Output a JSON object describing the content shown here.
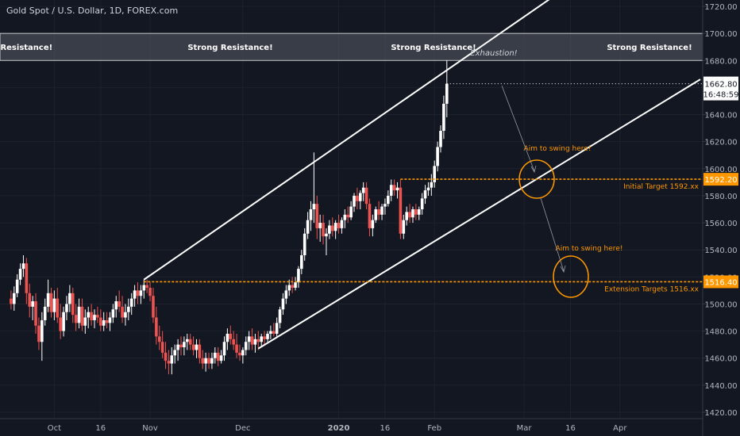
{
  "colors": {
    "background": "#131722",
    "grid": "#1e222d",
    "up": "#ffffff",
    "down": "#ef5350",
    "channel": "#ffffff",
    "target": "#ff9800",
    "resistance_fill": "#5a5d66",
    "axis_text": "#b2b5be",
    "current_price_bg": "#ffffff",
    "current_price_text": "#131722"
  },
  "chart_data": {
    "type": "candlestick",
    "title": "Gold Spot / U.S. Dollar, 1D, FOREX.com",
    "ylim": [
      1420,
      1720
    ],
    "x_range_days": [
      -14,
      210
    ],
    "y_ticks": [
      {
        "value": 1420,
        "label": "1420.00"
      },
      {
        "value": 1440,
        "label": "1440.00"
      },
      {
        "value": 1460,
        "label": "1460.00"
      },
      {
        "value": 1480,
        "label": "1480.00"
      },
      {
        "value": 1500,
        "label": "1500.00"
      },
      {
        "value": 1520,
        "label": "1520.00"
      },
      {
        "value": 1540,
        "label": "1540.00"
      },
      {
        "value": 1560,
        "label": "1560.00"
      },
      {
        "value": 1580,
        "label": "1580.00"
      },
      {
        "value": 1600,
        "label": "1600.00"
      },
      {
        "value": 1620,
        "label": "1620.00"
      },
      {
        "value": 1640,
        "label": "1640.00"
      },
      {
        "value": 1660,
        "label": "1660.00"
      },
      {
        "value": 1680,
        "label": "1680.00"
      },
      {
        "value": 1700,
        "label": "1700.00"
      },
      {
        "value": 1720,
        "label": "1720.00"
      }
    ],
    "x_ticks": [
      {
        "day": 1,
        "label": "Oct",
        "bold": false
      },
      {
        "day": 16,
        "label": "16",
        "bold": false
      },
      {
        "day": 32,
        "label": "Nov",
        "bold": false
      },
      {
        "day": 62,
        "label": "Dec",
        "bold": false
      },
      {
        "day": 93,
        "label": "2020",
        "bold": true
      },
      {
        "day": 108,
        "label": "16",
        "bold": false
      },
      {
        "day": 124,
        "label": "Feb",
        "bold": false
      },
      {
        "day": 153,
        "label": "Mar",
        "bold": false
      },
      {
        "day": 168,
        "label": "16",
        "bold": false
      },
      {
        "day": 184,
        "label": "Apr",
        "bold": false
      }
    ],
    "candles": [
      {
        "d": -13,
        "o": 1504,
        "h": 1510,
        "l": 1496,
        "c": 1500
      },
      {
        "d": -12,
        "o": 1500,
        "h": 1513,
        "l": 1495,
        "c": 1508
      },
      {
        "d": -11,
        "o": 1508,
        "h": 1522,
        "l": 1505,
        "c": 1518
      },
      {
        "d": -10,
        "o": 1518,
        "h": 1530,
        "l": 1514,
        "c": 1526
      },
      {
        "d": -9,
        "o": 1526,
        "h": 1536,
        "l": 1520,
        "c": 1530
      },
      {
        "d": -8,
        "o": 1530,
        "h": 1534,
        "l": 1500,
        "c": 1508
      },
      {
        "d": -7,
        "o": 1508,
        "h": 1515,
        "l": 1490,
        "c": 1498
      },
      {
        "d": -6,
        "o": 1498,
        "h": 1506,
        "l": 1488,
        "c": 1502
      },
      {
        "d": -5,
        "o": 1502,
        "h": 1508,
        "l": 1478,
        "c": 1484
      },
      {
        "d": -4,
        "o": 1484,
        "h": 1490,
        "l": 1466,
        "c": 1472
      },
      {
        "d": -3,
        "o": 1472,
        "h": 1494,
        "l": 1458,
        "c": 1488
      },
      {
        "d": -2,
        "o": 1488,
        "h": 1504,
        "l": 1484,
        "c": 1498
      },
      {
        "d": -1,
        "o": 1498,
        "h": 1518,
        "l": 1494,
        "c": 1508
      },
      {
        "d": 0,
        "o": 1508,
        "h": 1512,
        "l": 1490,
        "c": 1494
      },
      {
        "d": 1,
        "o": 1494,
        "h": 1510,
        "l": 1488,
        "c": 1504
      },
      {
        "d": 2,
        "o": 1504,
        "h": 1512,
        "l": 1486,
        "c": 1490
      },
      {
        "d": 3,
        "o": 1490,
        "h": 1500,
        "l": 1474,
        "c": 1480
      },
      {
        "d": 4,
        "o": 1480,
        "h": 1498,
        "l": 1476,
        "c": 1494
      },
      {
        "d": 5,
        "o": 1494,
        "h": 1506,
        "l": 1488,
        "c": 1500
      },
      {
        "d": 6,
        "o": 1500,
        "h": 1514,
        "l": 1494,
        "c": 1508
      },
      {
        "d": 7,
        "o": 1508,
        "h": 1512,
        "l": 1486,
        "c": 1492
      },
      {
        "d": 8,
        "o": 1492,
        "h": 1500,
        "l": 1480,
        "c": 1486
      },
      {
        "d": 9,
        "o": 1486,
        "h": 1504,
        "l": 1482,
        "c": 1498
      },
      {
        "d": 10,
        "o": 1498,
        "h": 1504,
        "l": 1480,
        "c": 1484
      },
      {
        "d": 11,
        "o": 1484,
        "h": 1496,
        "l": 1478,
        "c": 1490
      },
      {
        "d": 12,
        "o": 1490,
        "h": 1498,
        "l": 1482,
        "c": 1494
      },
      {
        "d": 13,
        "o": 1494,
        "h": 1500,
        "l": 1484,
        "c": 1488
      },
      {
        "d": 14,
        "o": 1488,
        "h": 1496,
        "l": 1482,
        "c": 1492
      },
      {
        "d": 15,
        "o": 1492,
        "h": 1498,
        "l": 1486,
        "c": 1490
      },
      {
        "d": 16,
        "o": 1490,
        "h": 1496,
        "l": 1480,
        "c": 1484
      },
      {
        "d": 17,
        "o": 1484,
        "h": 1494,
        "l": 1480,
        "c": 1488
      },
      {
        "d": 18,
        "o": 1488,
        "h": 1494,
        "l": 1482,
        "c": 1486
      },
      {
        "d": 19,
        "o": 1486,
        "h": 1494,
        "l": 1480,
        "c": 1490
      },
      {
        "d": 20,
        "o": 1490,
        "h": 1500,
        "l": 1486,
        "c": 1496
      },
      {
        "d": 21,
        "o": 1496,
        "h": 1506,
        "l": 1490,
        "c": 1502
      },
      {
        "d": 22,
        "o": 1502,
        "h": 1510,
        "l": 1494,
        "c": 1498
      },
      {
        "d": 23,
        "o": 1498,
        "h": 1506,
        "l": 1486,
        "c": 1490
      },
      {
        "d": 24,
        "o": 1490,
        "h": 1500,
        "l": 1484,
        "c": 1494
      },
      {
        "d": 25,
        "o": 1494,
        "h": 1504,
        "l": 1488,
        "c": 1498
      },
      {
        "d": 26,
        "o": 1498,
        "h": 1508,
        "l": 1492,
        "c": 1504
      },
      {
        "d": 27,
        "o": 1504,
        "h": 1514,
        "l": 1498,
        "c": 1510
      },
      {
        "d": 28,
        "o": 1510,
        "h": 1516,
        "l": 1500,
        "c": 1506
      },
      {
        "d": 29,
        "o": 1506,
        "h": 1514,
        "l": 1500,
        "c": 1510
      },
      {
        "d": 30,
        "o": 1510,
        "h": 1518,
        "l": 1504,
        "c": 1514
      },
      {
        "d": 31,
        "o": 1514,
        "h": 1518,
        "l": 1508,
        "c": 1512
      },
      {
        "d": 32,
        "o": 1512,
        "h": 1516,
        "l": 1502,
        "c": 1506
      },
      {
        "d": 33,
        "o": 1506,
        "h": 1512,
        "l": 1486,
        "c": 1490
      },
      {
        "d": 34,
        "o": 1490,
        "h": 1498,
        "l": 1470,
        "c": 1476
      },
      {
        "d": 35,
        "o": 1476,
        "h": 1484,
        "l": 1466,
        "c": 1472
      },
      {
        "d": 36,
        "o": 1472,
        "h": 1480,
        "l": 1460,
        "c": 1464
      },
      {
        "d": 37,
        "o": 1464,
        "h": 1472,
        "l": 1452,
        "c": 1458
      },
      {
        "d": 38,
        "o": 1458,
        "h": 1466,
        "l": 1448,
        "c": 1456
      },
      {
        "d": 39,
        "o": 1456,
        "h": 1468,
        "l": 1448,
        "c": 1462
      },
      {
        "d": 40,
        "o": 1462,
        "h": 1470,
        "l": 1456,
        "c": 1466
      },
      {
        "d": 41,
        "o": 1466,
        "h": 1474,
        "l": 1458,
        "c": 1470
      },
      {
        "d": 42,
        "o": 1470,
        "h": 1476,
        "l": 1462,
        "c": 1468
      },
      {
        "d": 43,
        "o": 1468,
        "h": 1476,
        "l": 1462,
        "c": 1472
      },
      {
        "d": 44,
        "o": 1472,
        "h": 1478,
        "l": 1466,
        "c": 1474
      },
      {
        "d": 45,
        "o": 1474,
        "h": 1478,
        "l": 1466,
        "c": 1470
      },
      {
        "d": 46,
        "o": 1470,
        "h": 1476,
        "l": 1462,
        "c": 1466
      },
      {
        "d": 47,
        "o": 1466,
        "h": 1474,
        "l": 1460,
        "c": 1470
      },
      {
        "d": 48,
        "o": 1470,
        "h": 1474,
        "l": 1456,
        "c": 1460
      },
      {
        "d": 49,
        "o": 1460,
        "h": 1466,
        "l": 1452,
        "c": 1456
      },
      {
        "d": 50,
        "o": 1456,
        "h": 1464,
        "l": 1450,
        "c": 1460
      },
      {
        "d": 51,
        "o": 1460,
        "h": 1464,
        "l": 1452,
        "c": 1456
      },
      {
        "d": 52,
        "o": 1456,
        "h": 1464,
        "l": 1452,
        "c": 1460
      },
      {
        "d": 53,
        "o": 1460,
        "h": 1468,
        "l": 1456,
        "c": 1464
      },
      {
        "d": 54,
        "o": 1464,
        "h": 1468,
        "l": 1454,
        "c": 1458
      },
      {
        "d": 55,
        "o": 1458,
        "h": 1466,
        "l": 1456,
        "c": 1462
      },
      {
        "d": 56,
        "o": 1462,
        "h": 1476,
        "l": 1458,
        "c": 1472
      },
      {
        "d": 57,
        "o": 1472,
        "h": 1482,
        "l": 1466,
        "c": 1478
      },
      {
        "d": 58,
        "o": 1478,
        "h": 1484,
        "l": 1470,
        "c": 1474
      },
      {
        "d": 59,
        "o": 1474,
        "h": 1480,
        "l": 1466,
        "c": 1470
      },
      {
        "d": 60,
        "o": 1470,
        "h": 1478,
        "l": 1460,
        "c": 1464
      },
      {
        "d": 61,
        "o": 1464,
        "h": 1470,
        "l": 1458,
        "c": 1462
      },
      {
        "d": 62,
        "o": 1462,
        "h": 1468,
        "l": 1456,
        "c": 1466
      },
      {
        "d": 63,
        "o": 1466,
        "h": 1476,
        "l": 1462,
        "c": 1472
      },
      {
        "d": 64,
        "o": 1472,
        "h": 1480,
        "l": 1466,
        "c": 1476
      },
      {
        "d": 65,
        "o": 1476,
        "h": 1482,
        "l": 1466,
        "c": 1470
      },
      {
        "d": 66,
        "o": 1470,
        "h": 1478,
        "l": 1464,
        "c": 1474
      },
      {
        "d": 67,
        "o": 1474,
        "h": 1480,
        "l": 1466,
        "c": 1472
      },
      {
        "d": 68,
        "o": 1472,
        "h": 1478,
        "l": 1468,
        "c": 1476
      },
      {
        "d": 69,
        "o": 1476,
        "h": 1480,
        "l": 1470,
        "c": 1474
      },
      {
        "d": 70,
        "o": 1474,
        "h": 1480,
        "l": 1472,
        "c": 1478
      },
      {
        "d": 71,
        "o": 1478,
        "h": 1484,
        "l": 1474,
        "c": 1480
      },
      {
        "d": 72,
        "o": 1480,
        "h": 1486,
        "l": 1476,
        "c": 1478
      },
      {
        "d": 73,
        "o": 1478,
        "h": 1490,
        "l": 1476,
        "c": 1486
      },
      {
        "d": 74,
        "o": 1486,
        "h": 1498,
        "l": 1482,
        "c": 1496
      },
      {
        "d": 75,
        "o": 1496,
        "h": 1508,
        "l": 1492,
        "c": 1504
      },
      {
        "d": 76,
        "o": 1504,
        "h": 1514,
        "l": 1500,
        "c": 1510
      },
      {
        "d": 77,
        "o": 1510,
        "h": 1518,
        "l": 1506,
        "c": 1514
      },
      {
        "d": 78,
        "o": 1514,
        "h": 1520,
        "l": 1508,
        "c": 1512
      },
      {
        "d": 79,
        "o": 1512,
        "h": 1520,
        "l": 1510,
        "c": 1516
      },
      {
        "d": 80,
        "o": 1516,
        "h": 1528,
        "l": 1512,
        "c": 1526
      },
      {
        "d": 81,
        "o": 1526,
        "h": 1540,
        "l": 1522,
        "c": 1536
      },
      {
        "d": 82,
        "o": 1536,
        "h": 1556,
        "l": 1532,
        "c": 1552
      },
      {
        "d": 83,
        "o": 1552,
        "h": 1568,
        "l": 1548,
        "c": 1562
      },
      {
        "d": 84,
        "o": 1562,
        "h": 1576,
        "l": 1554,
        "c": 1570
      },
      {
        "d": 85,
        "o": 1570,
        "h": 1612,
        "l": 1560,
        "c": 1574
      },
      {
        "d": 86,
        "o": 1574,
        "h": 1580,
        "l": 1548,
        "c": 1556
      },
      {
        "d": 87,
        "o": 1556,
        "h": 1566,
        "l": 1546,
        "c": 1560
      },
      {
        "d": 88,
        "o": 1560,
        "h": 1566,
        "l": 1544,
        "c": 1550
      },
      {
        "d": 89,
        "o": 1550,
        "h": 1556,
        "l": 1536,
        "c": 1552
      },
      {
        "d": 90,
        "o": 1552,
        "h": 1562,
        "l": 1548,
        "c": 1558
      },
      {
        "d": 91,
        "o": 1558,
        "h": 1564,
        "l": 1550,
        "c": 1554
      },
      {
        "d": 92,
        "o": 1554,
        "h": 1562,
        "l": 1548,
        "c": 1560
      },
      {
        "d": 93,
        "o": 1560,
        "h": 1566,
        "l": 1552,
        "c": 1556
      },
      {
        "d": 94,
        "o": 1556,
        "h": 1564,
        "l": 1552,
        "c": 1562
      },
      {
        "d": 95,
        "o": 1562,
        "h": 1570,
        "l": 1556,
        "c": 1566
      },
      {
        "d": 96,
        "o": 1566,
        "h": 1572,
        "l": 1560,
        "c": 1564
      },
      {
        "d": 97,
        "o": 1564,
        "h": 1576,
        "l": 1562,
        "c": 1572
      },
      {
        "d": 98,
        "o": 1572,
        "h": 1582,
        "l": 1568,
        "c": 1580
      },
      {
        "d": 99,
        "o": 1580,
        "h": 1586,
        "l": 1570,
        "c": 1576
      },
      {
        "d": 100,
        "o": 1576,
        "h": 1584,
        "l": 1570,
        "c": 1582
      },
      {
        "d": 101,
        "o": 1582,
        "h": 1590,
        "l": 1576,
        "c": 1586
      },
      {
        "d": 102,
        "o": 1586,
        "h": 1590,
        "l": 1570,
        "c": 1574
      },
      {
        "d": 103,
        "o": 1574,
        "h": 1578,
        "l": 1550,
        "c": 1556
      },
      {
        "d": 104,
        "o": 1556,
        "h": 1566,
        "l": 1550,
        "c": 1562
      },
      {
        "d": 105,
        "o": 1562,
        "h": 1572,
        "l": 1560,
        "c": 1570
      },
      {
        "d": 106,
        "o": 1570,
        "h": 1576,
        "l": 1562,
        "c": 1566
      },
      {
        "d": 107,
        "o": 1566,
        "h": 1574,
        "l": 1562,
        "c": 1572
      },
      {
        "d": 108,
        "o": 1572,
        "h": 1578,
        "l": 1566,
        "c": 1574
      },
      {
        "d": 109,
        "o": 1574,
        "h": 1584,
        "l": 1572,
        "c": 1580
      },
      {
        "d": 110,
        "o": 1580,
        "h": 1592,
        "l": 1576,
        "c": 1588
      },
      {
        "d": 111,
        "o": 1588,
        "h": 1592,
        "l": 1580,
        "c": 1584
      },
      {
        "d": 112,
        "o": 1584,
        "h": 1590,
        "l": 1578,
        "c": 1586
      },
      {
        "d": 113,
        "o": 1586,
        "h": 1592,
        "l": 1548,
        "c": 1552
      },
      {
        "d": 114,
        "o": 1552,
        "h": 1566,
        "l": 1548,
        "c": 1562
      },
      {
        "d": 115,
        "o": 1562,
        "h": 1572,
        "l": 1558,
        "c": 1568
      },
      {
        "d": 116,
        "o": 1568,
        "h": 1574,
        "l": 1560,
        "c": 1564
      },
      {
        "d": 117,
        "o": 1564,
        "h": 1572,
        "l": 1560,
        "c": 1570
      },
      {
        "d": 118,
        "o": 1570,
        "h": 1574,
        "l": 1562,
        "c": 1566
      },
      {
        "d": 119,
        "o": 1566,
        "h": 1572,
        "l": 1562,
        "c": 1570
      },
      {
        "d": 120,
        "o": 1570,
        "h": 1582,
        "l": 1566,
        "c": 1578
      },
      {
        "d": 121,
        "o": 1578,
        "h": 1588,
        "l": 1574,
        "c": 1584
      },
      {
        "d": 122,
        "o": 1584,
        "h": 1590,
        "l": 1580,
        "c": 1586
      },
      {
        "d": 123,
        "o": 1586,
        "h": 1596,
        "l": 1580,
        "c": 1590
      },
      {
        "d": 124,
        "o": 1590,
        "h": 1606,
        "l": 1586,
        "c": 1602
      },
      {
        "d": 125,
        "o": 1602,
        "h": 1620,
        "l": 1598,
        "c": 1616
      },
      {
        "d": 126,
        "o": 1616,
        "h": 1632,
        "l": 1612,
        "c": 1628
      },
      {
        "d": 127,
        "o": 1628,
        "h": 1654,
        "l": 1622,
        "c": 1648
      },
      {
        "d": 128,
        "o": 1648,
        "h": 1680,
        "l": 1638,
        "c": 1662.8
      }
    ],
    "channel": {
      "upper": {
        "from": {
          "d": 30,
          "p": 1518
        },
        "to": {
          "d": 168,
          "p": 1736
        }
      },
      "lower": {
        "from": {
          "d": 67,
          "p": 1467
        },
        "to": {
          "d": 210,
          "p": 1666
        }
      }
    },
    "resistance_zone": {
      "from_price": 1680,
      "to_price": 1700
    },
    "targets": [
      {
        "price": 1592.2,
        "from_day": 113,
        "value_label": "1592.20",
        "label": "Initial Target 1592.xx"
      },
      {
        "price": 1516.4,
        "from_day": 30,
        "value_label": "1516.40",
        "label": "Extension Targets 1516.xx"
      }
    ],
    "current_price": {
      "value": 1662.8,
      "label": "1662.80",
      "countdown": "16:48:59"
    }
  },
  "annotations": {
    "title": "Gold Spot / U.S. Dollar, 1D, FOREX.com",
    "resistance_labels": [
      "g Resistance!",
      "Strong Resistance!",
      "Strong Resistance!",
      "Strong Resistance!"
    ],
    "exhaustion": "Exhaustion!",
    "swing_1": "Aim to swing here!",
    "swing_2": "Aim to swing here!"
  }
}
